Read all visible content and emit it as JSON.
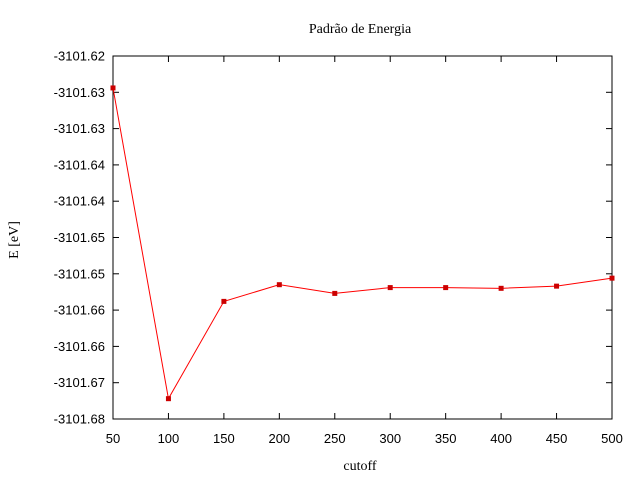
{
  "chart_data": {
    "type": "line",
    "title": "Padrão de Energia",
    "xlabel": "cutoff",
    "ylabel": "E [eV]",
    "xlim": [
      50,
      500
    ],
    "ylim": [
      -3101.675,
      -3101.625
    ],
    "grid": false,
    "legend": "none",
    "x_ticks": [
      50,
      100,
      150,
      200,
      250,
      300,
      350,
      400,
      450,
      500
    ],
    "x_tick_labels": [
      "50",
      "100",
      "150",
      "200",
      "250",
      "300",
      "350",
      "400",
      "450",
      "500"
    ],
    "y_ticks": [
      -3101.625,
      -3101.63,
      -3101.635,
      -3101.64,
      -3101.645,
      -3101.65,
      -3101.655,
      -3101.66,
      -3101.665,
      -3101.67,
      -3101.675
    ],
    "y_tick_labels": [
      "-3101.62",
      "-3101.63",
      "-3101.63",
      "-3101.64",
      "-3101.64",
      "-3101.65",
      "-3101.65",
      "-3101.66",
      "-3101.66",
      "-3101.67",
      "-3101.68"
    ],
    "series": [
      {
        "color": "#ff0000",
        "marker_color": "#cc0000",
        "x": [
          50,
          100,
          150,
          200,
          250,
          300,
          350,
          400,
          450,
          500
        ],
        "y": [
          -3101.6294,
          -3101.6722,
          -3101.6588,
          -3101.6565,
          -3101.6577,
          -3101.6569,
          -3101.6569,
          -3101.657,
          -3101.6567,
          -3101.6556
        ]
      }
    ]
  }
}
